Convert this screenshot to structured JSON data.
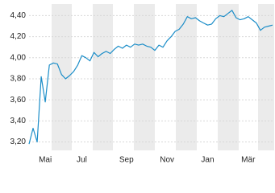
{
  "chart_data": {
    "type": "line",
    "categories": [
      null,
      null,
      null,
      null,
      "Mai",
      null,
      null,
      null,
      null,
      null,
      null,
      null,
      null,
      "Jul",
      null,
      null,
      null,
      null,
      null,
      null,
      null,
      null,
      null,
      null,
      "Sep",
      null,
      null,
      null,
      null,
      null,
      null,
      null,
      null,
      null,
      "Nov",
      null,
      null,
      null,
      null,
      null,
      null,
      null,
      null,
      null,
      "Jan",
      null,
      null,
      null,
      null,
      null,
      null,
      null,
      null,
      null,
      "Mär",
      null,
      null,
      null,
      null,
      null,
      null
    ],
    "series": [
      {
        "color": "#1b8dc8",
        "values": [
          3.18,
          3.33,
          3.2,
          3.82,
          3.58,
          3.93,
          3.95,
          3.94,
          3.84,
          3.8,
          3.83,
          3.87,
          3.93,
          4.02,
          4.0,
          3.97,
          4.05,
          4.01,
          4.04,
          4.06,
          4.04,
          4.08,
          4.11,
          4.09,
          4.12,
          4.1,
          4.13,
          4.12,
          4.13,
          4.11,
          4.1,
          4.07,
          4.12,
          4.1,
          4.16,
          4.2,
          4.25,
          4.27,
          4.32,
          4.39,
          4.37,
          4.38,
          4.35,
          4.33,
          4.31,
          4.32,
          4.37,
          4.4,
          4.39,
          4.42,
          4.45,
          4.38,
          4.36,
          4.37,
          4.39,
          4.36,
          4.33,
          4.26,
          4.29,
          4.3,
          4.31
        ]
      }
    ],
    "ylim": [
      3.12,
      4.51
    ],
    "yticks": [
      {
        "value": 3.2,
        "label": "3,20"
      },
      {
        "value": 3.4,
        "label": "3,40"
      },
      {
        "value": 3.6,
        "label": "3,60"
      },
      {
        "value": 3.8,
        "label": "3,80"
      },
      {
        "value": 4.0,
        "label": "4,00"
      },
      {
        "value": 4.2,
        "label": "4,20"
      },
      {
        "value": 4.4,
        "label": "4,40"
      }
    ],
    "grid": true
  }
}
